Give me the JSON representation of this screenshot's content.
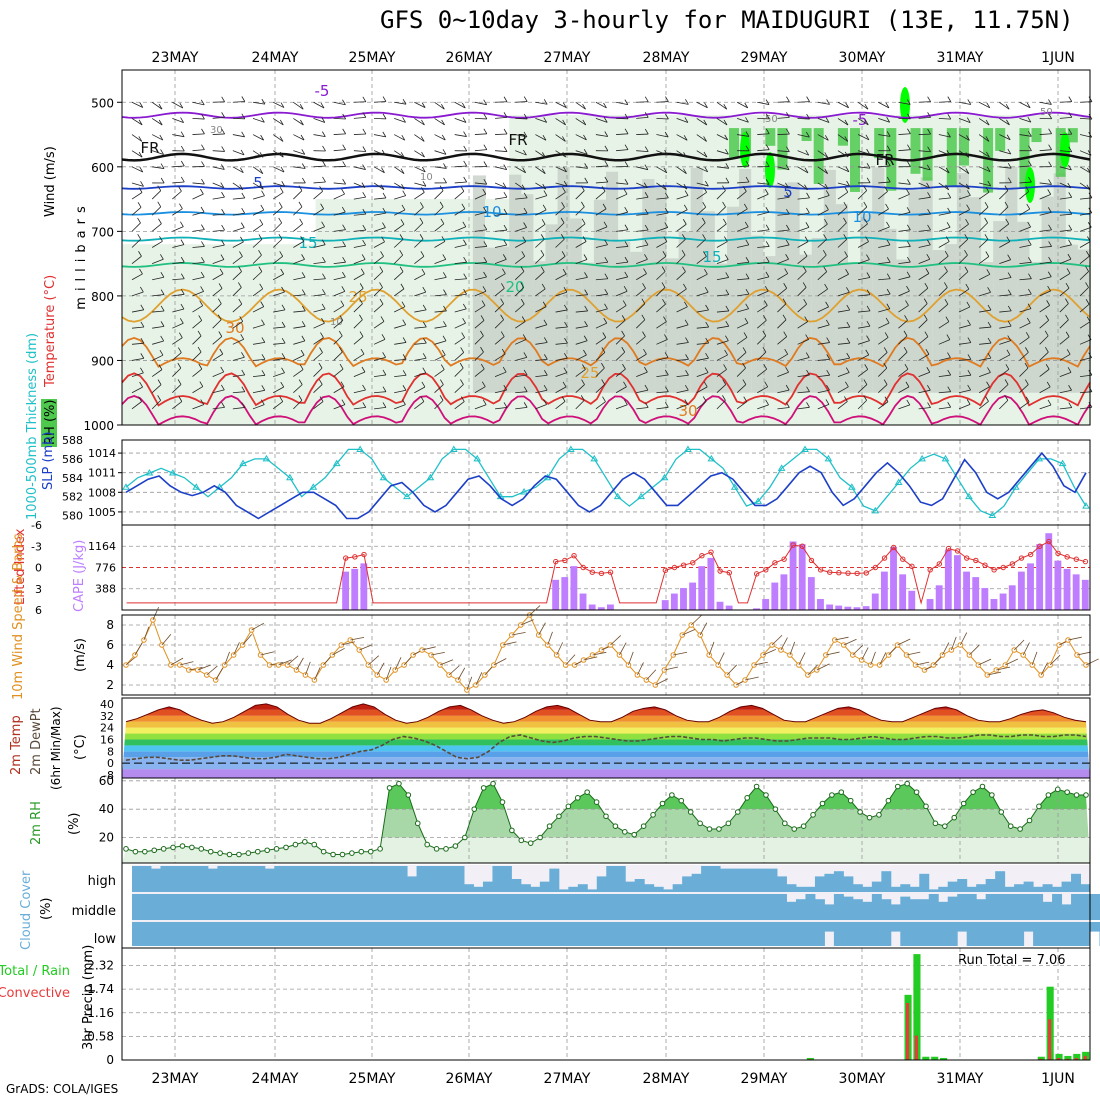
{
  "page": {
    "title": "GFS 0~10day 3-hourly for MAIDUGURI (13E, 11.75N)",
    "footer": "GrADS: COLA/IGES",
    "dates": [
      "23MAY",
      "24MAY",
      "25MAY",
      "26MAY",
      "27MAY",
      "28MAY",
      "29MAY",
      "30MAY",
      "31MAY",
      "1JUN"
    ]
  },
  "colors": {
    "rh_light": "#e6f3e6",
    "rh_mid": "#c7cfc7",
    "rh_dark": "#a8b4a8",
    "rh_green": "#4ec94e",
    "rh_bright": "#00ff00",
    "slp": "#1c3fc8",
    "thickness": "#1fc0c8",
    "lifted": "#e03030",
    "cape": "#bf7dff",
    "wind_line": "#e09020",
    "cloud_blue": "#6aaed8",
    "rh2m": "#5ac85a",
    "rain_green": "#22cc22",
    "conv_red": "#e83a3a"
  },
  "chart_data": [
    {
      "type": "heatmap",
      "name": "upper-air",
      "ylabel_parts": [
        "RH (%)",
        "Temperature (°C)",
        "Wind (m/s)"
      ],
      "axis_label": "millibars",
      "ylim": [
        1000,
        450
      ],
      "y_ticks": [
        500,
        600,
        700,
        800,
        900,
        1000
      ],
      "temp_contour_labels": [
        "-5",
        "FR",
        "5",
        "10",
        "15",
        "20",
        "25",
        "30"
      ],
      "rh_contour_labels": [
        "10",
        "30",
        "50"
      ],
      "isotherms": [
        {
          "label": "-5",
          "color": "#8a1ad0",
          "base": 520,
          "amp": 8
        },
        {
          "label": "FR",
          "color": "#111111",
          "base": 585,
          "amp": 10
        },
        {
          "label": "5",
          "color": "#1c3fc8",
          "base": 632,
          "amp": 4
        },
        {
          "label": "10",
          "color": "#1b8fe0",
          "base": 672,
          "amp": 4
        },
        {
          "label": "15",
          "color": "#10b0b8",
          "base": 712,
          "amp": 5
        },
        {
          "label": "20",
          "color": "#20c080",
          "base": 752,
          "amp": 6
        },
        {
          "label": "25",
          "color": "#e0a030",
          "base": 815,
          "amp": 25
        },
        {
          "label": "30",
          "color": "#e07a20",
          "base": 870,
          "amp": 45
        },
        {
          "label": "35",
          "color": "#e03030",
          "base": 930,
          "amp": 50
        },
        {
          "label": "40",
          "color": "#d0107a",
          "base": 960,
          "amp": 45
        }
      ]
    },
    {
      "type": "line",
      "name": "slp-thickness",
      "ylabel": "1000-500mb Thickness (dm)",
      "ylabel2": "SLP (mb)",
      "thickness_ticks": [
        "588",
        "586",
        "584",
        "582",
        "580"
      ],
      "slp_ticks": [
        "1014",
        "1011",
        "1008",
        "1005"
      ],
      "ylim_thickness": [
        579,
        588
      ],
      "ylim_slp": [
        1003,
        1016
      ],
      "thickness": [
        583,
        584,
        584.5,
        585,
        584.5,
        584,
        583,
        582,
        583,
        584,
        585.5,
        586,
        586,
        585,
        584,
        582,
        583,
        584,
        585.5,
        587,
        587,
        586,
        584,
        583,
        582,
        583,
        584,
        586,
        587,
        587,
        586,
        584,
        582,
        582,
        582.5,
        583,
        584,
        586,
        587,
        587,
        586,
        584,
        582,
        581,
        582,
        583,
        584,
        586,
        587,
        587,
        586,
        585,
        583,
        581,
        581.5,
        583,
        585,
        586,
        587,
        587,
        586,
        584,
        583,
        581,
        580.5,
        582,
        583.5,
        585,
        586,
        586.5,
        586,
        584,
        582,
        580.5,
        580,
        581,
        583,
        584.5,
        586,
        586,
        585.5,
        583,
        581
      ],
      "slp": [
        1008,
        1009,
        1010,
        1010.5,
        1009,
        1008,
        1007.5,
        1008,
        1009,
        1008,
        1006,
        1005,
        1004,
        1005,
        1006,
        1007,
        1008,
        1008,
        1007,
        1006,
        1004,
        1004,
        1005,
        1007,
        1009,
        1009.5,
        1008,
        1006,
        1005,
        1006,
        1008,
        1010,
        1010.5,
        1009,
        1007,
        1006,
        1007,
        1009,
        1010.5,
        1010,
        1008,
        1006,
        1005,
        1006,
        1008,
        1010,
        1011,
        1010,
        1008,
        1006,
        1006,
        1007.5,
        1009,
        1010.5,
        1011,
        1010,
        1008,
        1006,
        1006,
        1007,
        1009,
        1011,
        1012,
        1011,
        1008,
        1006,
        1007,
        1009,
        1011,
        1012.5,
        1011,
        1009,
        1006.5,
        1006,
        1007,
        1010,
        1013,
        1011,
        1008,
        1007,
        1008,
        1010,
        1012,
        1014,
        1012,
        1009,
        1008,
        1011
      ]
    },
    {
      "type": "bar",
      "name": "lifted-cape",
      "ylabel": "Lifted Index",
      "ylabel2": "CAPE (J/kg)",
      "li_ticks": [
        "-6",
        "-3",
        "0",
        "3",
        "6"
      ],
      "cape_ticks": [
        "1164",
        "776",
        "388"
      ],
      "ylim_li": [
        6,
        -6
      ],
      "ylim_cape": [
        0,
        1550
      ],
      "cape": [
        0,
        0,
        0,
        0,
        0,
        0,
        0,
        0,
        0,
        0,
        0,
        0,
        0,
        0,
        0,
        0,
        0,
        0,
        0,
        0,
        0,
        0,
        0,
        0,
        700,
        750,
        850,
        0,
        0,
        0,
        0,
        0,
        0,
        0,
        0,
        0,
        0,
        0,
        0,
        0,
        0,
        0,
        0,
        0,
        0,
        0,
        0,
        550,
        600,
        800,
        300,
        100,
        50,
        100,
        0,
        0,
        0,
        0,
        0,
        180,
        300,
        400,
        500,
        800,
        950,
        150,
        80,
        0,
        0,
        30,
        200,
        500,
        650,
        1250,
        1200,
        600,
        200,
        100,
        80,
        60,
        50,
        70,
        300,
        700,
        1150,
        650,
        350,
        0,
        200,
        450,
        1100,
        1000,
        700,
        600,
        400,
        200,
        300,
        450,
        700,
        850,
        1200,
        1400,
        900,
        750,
        650,
        550
      ]
    },
    {
      "type": "line",
      "name": "wind10m",
      "ylabel": "10m Wind Speed & Barbs",
      "unit": "(m/s)",
      "y_ticks": [
        "8",
        "6",
        "4",
        "2"
      ],
      "ylim": [
        1,
        9
      ],
      "speed": [
        4,
        5,
        6.5,
        8.5,
        6,
        4,
        4,
        3.5,
        3.5,
        3,
        2.5,
        4,
        5,
        6,
        7.5,
        5,
        4,
        4,
        4,
        3.5,
        3,
        2.5,
        4,
        5,
        6,
        6.5,
        5.5,
        4,
        3,
        2.5,
        3.5,
        4,
        5,
        5.5,
        5,
        4,
        3,
        2.5,
        1.5,
        2,
        3,
        4,
        6,
        7,
        8,
        9,
        7,
        6,
        5,
        4,
        4,
        4.5,
        5,
        5.5,
        6,
        5,
        4,
        3,
        2.5,
        2,
        3.5,
        5,
        7,
        8,
        7,
        5,
        4,
        3,
        2,
        2.5,
        4,
        5,
        6,
        5.5,
        5,
        4,
        3,
        3.5,
        5,
        6.5,
        6,
        5,
        4.5,
        4,
        4,
        5,
        6,
        5,
        4,
        3.5,
        4,
        5,
        5.5,
        6,
        5,
        4,
        3,
        3.5,
        4,
        5.5,
        5,
        4,
        3,
        4,
        6,
        6.5,
        5,
        4
      ]
    },
    {
      "type": "area",
      "name": "temp2m",
      "ylabel": "2m Temp",
      "ylabel2": "2m DewPt",
      "ylabel3": "(6hr Min/Max)",
      "unit": "(°C)",
      "y_ticks": [
        "40",
        "32",
        "24",
        "16",
        "8",
        "0",
        "-8"
      ],
      "ylim": [
        -10,
        44
      ],
      "temp": [
        28,
        30,
        33,
        36,
        38,
        36,
        32,
        29,
        27,
        28,
        31,
        35,
        39,
        40,
        38,
        33,
        29,
        27,
        27,
        30,
        34,
        38,
        40,
        38,
        33,
        29,
        27,
        28,
        31,
        35,
        38,
        39,
        36,
        32,
        29,
        27,
        28,
        31,
        35,
        38,
        39,
        37,
        33,
        29,
        28,
        28,
        31,
        35,
        37,
        38,
        36,
        32,
        29,
        28,
        28,
        31,
        35,
        38,
        39,
        37,
        33,
        29,
        28,
        28,
        31,
        34,
        37,
        38,
        36,
        32,
        29,
        28,
        28,
        31,
        34,
        37,
        38,
        36,
        32,
        29,
        28,
        28,
        30,
        33,
        35,
        36,
        34,
        31,
        29,
        28
      ],
      "dewpoint": [
        2,
        3,
        4,
        4,
        3,
        2,
        2,
        3,
        4,
        5,
        5,
        4,
        3,
        3,
        4,
        6,
        5,
        4,
        3,
        3,
        4,
        6,
        8,
        9,
        12,
        16,
        18,
        17,
        15,
        12,
        8,
        4,
        3,
        4,
        8,
        14,
        18,
        19,
        17,
        15,
        14,
        15,
        17,
        18,
        18,
        17,
        16,
        15,
        15,
        16,
        17,
        18,
        18,
        17,
        16,
        16,
        15,
        16,
        17,
        17,
        16,
        15,
        15,
        16,
        17,
        17,
        17,
        16,
        16,
        17,
        18,
        17,
        16,
        16,
        17,
        18,
        18,
        17,
        17,
        18,
        19,
        19,
        18,
        18,
        19,
        19,
        18,
        18,
        19,
        19,
        18
      ]
    },
    {
      "type": "area",
      "name": "rh2m",
      "ylabel": "2m RH",
      "unit": "(%)",
      "y_ticks": [
        "60",
        "40",
        "20"
      ],
      "ylim": [
        2,
        62
      ],
      "rh": [
        12,
        10,
        10,
        11,
        12,
        13,
        14,
        13,
        12,
        10,
        9,
        8,
        8,
        9,
        10,
        11,
        12,
        13,
        15,
        17,
        15,
        10,
        8,
        8,
        9,
        10,
        10,
        12,
        55,
        58,
        50,
        30,
        15,
        12,
        12,
        14,
        20,
        40,
        55,
        58,
        45,
        25,
        18,
        16,
        20,
        28,
        35,
        42,
        48,
        52,
        45,
        35,
        28,
        24,
        22,
        28,
        36,
        44,
        50,
        46,
        38,
        30,
        26,
        26,
        30,
        38,
        48,
        56,
        50,
        40,
        30,
        26,
        28,
        36,
        44,
        50,
        52,
        46,
        38,
        34,
        36,
        46,
        56,
        58,
        52,
        42,
        30,
        28,
        34,
        44,
        52,
        56,
        50,
        38,
        28,
        26,
        32,
        42,
        50,
        54,
        52,
        50,
        50
      ]
    },
    {
      "type": "bar",
      "name": "cloud-cover",
      "ylabel": "Cloud Cover",
      "unit": "(%)",
      "levels": [
        "high",
        "middle",
        "low"
      ],
      "high_ratio": [
        1,
        1,
        0.9,
        1,
        1,
        1,
        1,
        1,
        0.9,
        1,
        1,
        1,
        1,
        1,
        0.9,
        1,
        1,
        1,
        1,
        1,
        1,
        1,
        1,
        1,
        1,
        1,
        1,
        1,
        1,
        0.6,
        1,
        1,
        1,
        1,
        1,
        0.3,
        0.2,
        0.4,
        1,
        1,
        0.5,
        0.3,
        0.2,
        0.4,
        0.9,
        0.1,
        0.2,
        0.3,
        0.1,
        0.6,
        1,
        1,
        0.4,
        0.5,
        0.3,
        0.2,
        0.1,
        0.3,
        0.6,
        0.7,
        1,
        1,
        0.9,
        0.9,
        0.9,
        0.9,
        0.9,
        0.9,
        0.6,
        0.3,
        0.2,
        0.2,
        0.6,
        0.7,
        0.8,
        0.6,
        0.3,
        0.2,
        0.4,
        0.8,
        0.2,
        0.3,
        0.2,
        0.7,
        0.1,
        0.2,
        0.4,
        0.5,
        0.2,
        0.3,
        0.5,
        0.8,
        0.2,
        0.3,
        0.4,
        0.2,
        0.3,
        0.2,
        0.4,
        0.7,
        0.3
      ],
      "mid_ratio": [
        1,
        1,
        1,
        1,
        1,
        1,
        1,
        1,
        1,
        1,
        1,
        1,
        1,
        1,
        1,
        1,
        1,
        1,
        1,
        1,
        1,
        1,
        1,
        1,
        1,
        1,
        1,
        1,
        1,
        1,
        1,
        1,
        1,
        1,
        1,
        1,
        1,
        1,
        1,
        1,
        1,
        1,
        1,
        1,
        1,
        1,
        1,
        1,
        1,
        1,
        1,
        1,
        1,
        1,
        1,
        1,
        1,
        1,
        1,
        1,
        1,
        1,
        1,
        1,
        1,
        1,
        1,
        1,
        1,
        0.7,
        0.8,
        1,
        0.8,
        0.6,
        1,
        0.9,
        0.8,
        0.7,
        1,
        0.8,
        0.6,
        0.9,
        0.8,
        0.8,
        1,
        0.7,
        0.9,
        1,
        1,
        0.8,
        1,
        1,
        1,
        1,
        1,
        1,
        0.7,
        1,
        0.6,
        1,
        1,
        1,
        0.6
      ]
    },
    {
      "type": "bar",
      "name": "precip",
      "ylabel": "Total / Rain",
      "ylabel_conv": "Convective",
      "unit": "3hr Precip (mm)",
      "run_total_label": "Run Total = 7.06",
      "y_ticks": [
        "2.32",
        "1.74",
        "1.16",
        "0.58",
        "0"
      ],
      "ylim": [
        0,
        2.75
      ],
      "total": [
        0,
        0,
        0,
        0,
        0,
        0,
        0,
        0,
        0,
        0,
        0,
        0,
        0,
        0,
        0,
        0,
        0,
        0,
        0,
        0,
        0,
        0,
        0,
        0,
        0,
        0,
        0,
        0,
        0,
        0,
        0,
        0,
        0,
        0,
        0,
        0,
        0,
        0,
        0,
        0,
        0,
        0,
        0,
        0,
        0,
        0,
        0,
        0,
        0,
        0,
        0,
        0,
        0,
        0,
        0,
        0,
        0,
        0,
        0,
        0,
        0,
        0,
        0,
        0,
        0,
        0,
        0,
        0,
        0,
        0,
        0,
        0,
        0,
        0,
        0,
        0,
        0,
        0.05,
        0,
        0,
        0,
        0,
        0,
        0,
        0,
        0,
        0,
        0,
        1.6,
        2.6,
        0.08,
        0.08,
        0.05,
        0,
        0,
        0,
        0,
        0,
        0,
        0,
        0,
        0,
        0,
        0.08,
        1.8,
        0.15,
        0.1,
        0.15,
        0.2
      ],
      "convective": [
        0,
        0,
        0,
        0,
        0,
        0,
        0,
        0,
        0,
        0,
        0,
        0,
        0,
        0,
        0,
        0,
        0,
        0,
        0,
        0,
        0,
        0,
        0,
        0,
        0,
        0,
        0,
        0,
        0,
        0,
        0,
        0,
        0,
        0,
        0,
        0,
        0,
        0,
        0,
        0,
        0,
        0,
        0,
        0,
        0,
        0,
        0,
        0,
        0,
        0,
        0,
        0,
        0,
        0,
        0,
        0,
        0,
        0,
        0,
        0,
        0,
        0,
        0,
        0,
        0,
        0,
        0,
        0,
        0,
        0,
        0,
        0,
        0,
        0,
        0,
        0,
        0,
        0.02,
        0,
        0,
        0,
        0,
        0,
        0,
        0,
        0,
        0,
        0,
        1.4,
        0.6,
        0,
        0,
        0,
        0,
        0,
        0,
        0,
        0,
        0,
        0,
        0,
        0,
        0,
        0.03,
        1.0,
        0.05,
        0.03,
        0.05,
        0.1
      ]
    }
  ]
}
